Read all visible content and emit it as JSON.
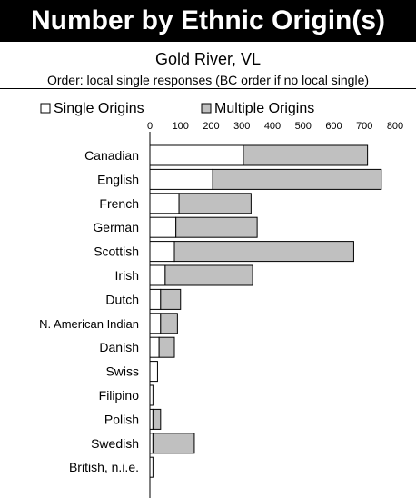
{
  "header": {
    "title": "Number by Ethnic Origin(s)",
    "subtitle": "Gold River, VL",
    "note": "Order: local single responses (BC order if no local single)"
  },
  "legend": {
    "single_label": "Single Origins",
    "multiple_label": "Multiple Origins",
    "placement": "top"
  },
  "colors": {
    "single": "#ffffff",
    "multiple": "#c0c0c0",
    "outline": "#000000"
  },
  "chart_data": {
    "type": "bar",
    "orientation": "horizontal",
    "stacked": true,
    "categories": [
      "Canadian",
      "English",
      "French",
      "German",
      "Scottish",
      "Irish",
      "Dutch",
      "N. American Indian",
      "Danish",
      "Swiss",
      "Filipino",
      "Polish",
      "Swedish",
      "British, n.i.e."
    ],
    "series": [
      {
        "name": "Single Origins",
        "values": [
          305,
          205,
          95,
          85,
          80,
          50,
          35,
          35,
          30,
          25,
          10,
          10,
          10,
          10
        ]
      },
      {
        "name": "Multiple Origins",
        "values": [
          405,
          550,
          235,
          265,
          585,
          285,
          65,
          55,
          50,
          0,
          0,
          25,
          135,
          0
        ]
      }
    ],
    "xlim": [
      0,
      800
    ],
    "xticks": [
      0,
      100,
      200,
      300,
      400,
      500,
      600,
      700,
      800
    ],
    "grid": false
  }
}
